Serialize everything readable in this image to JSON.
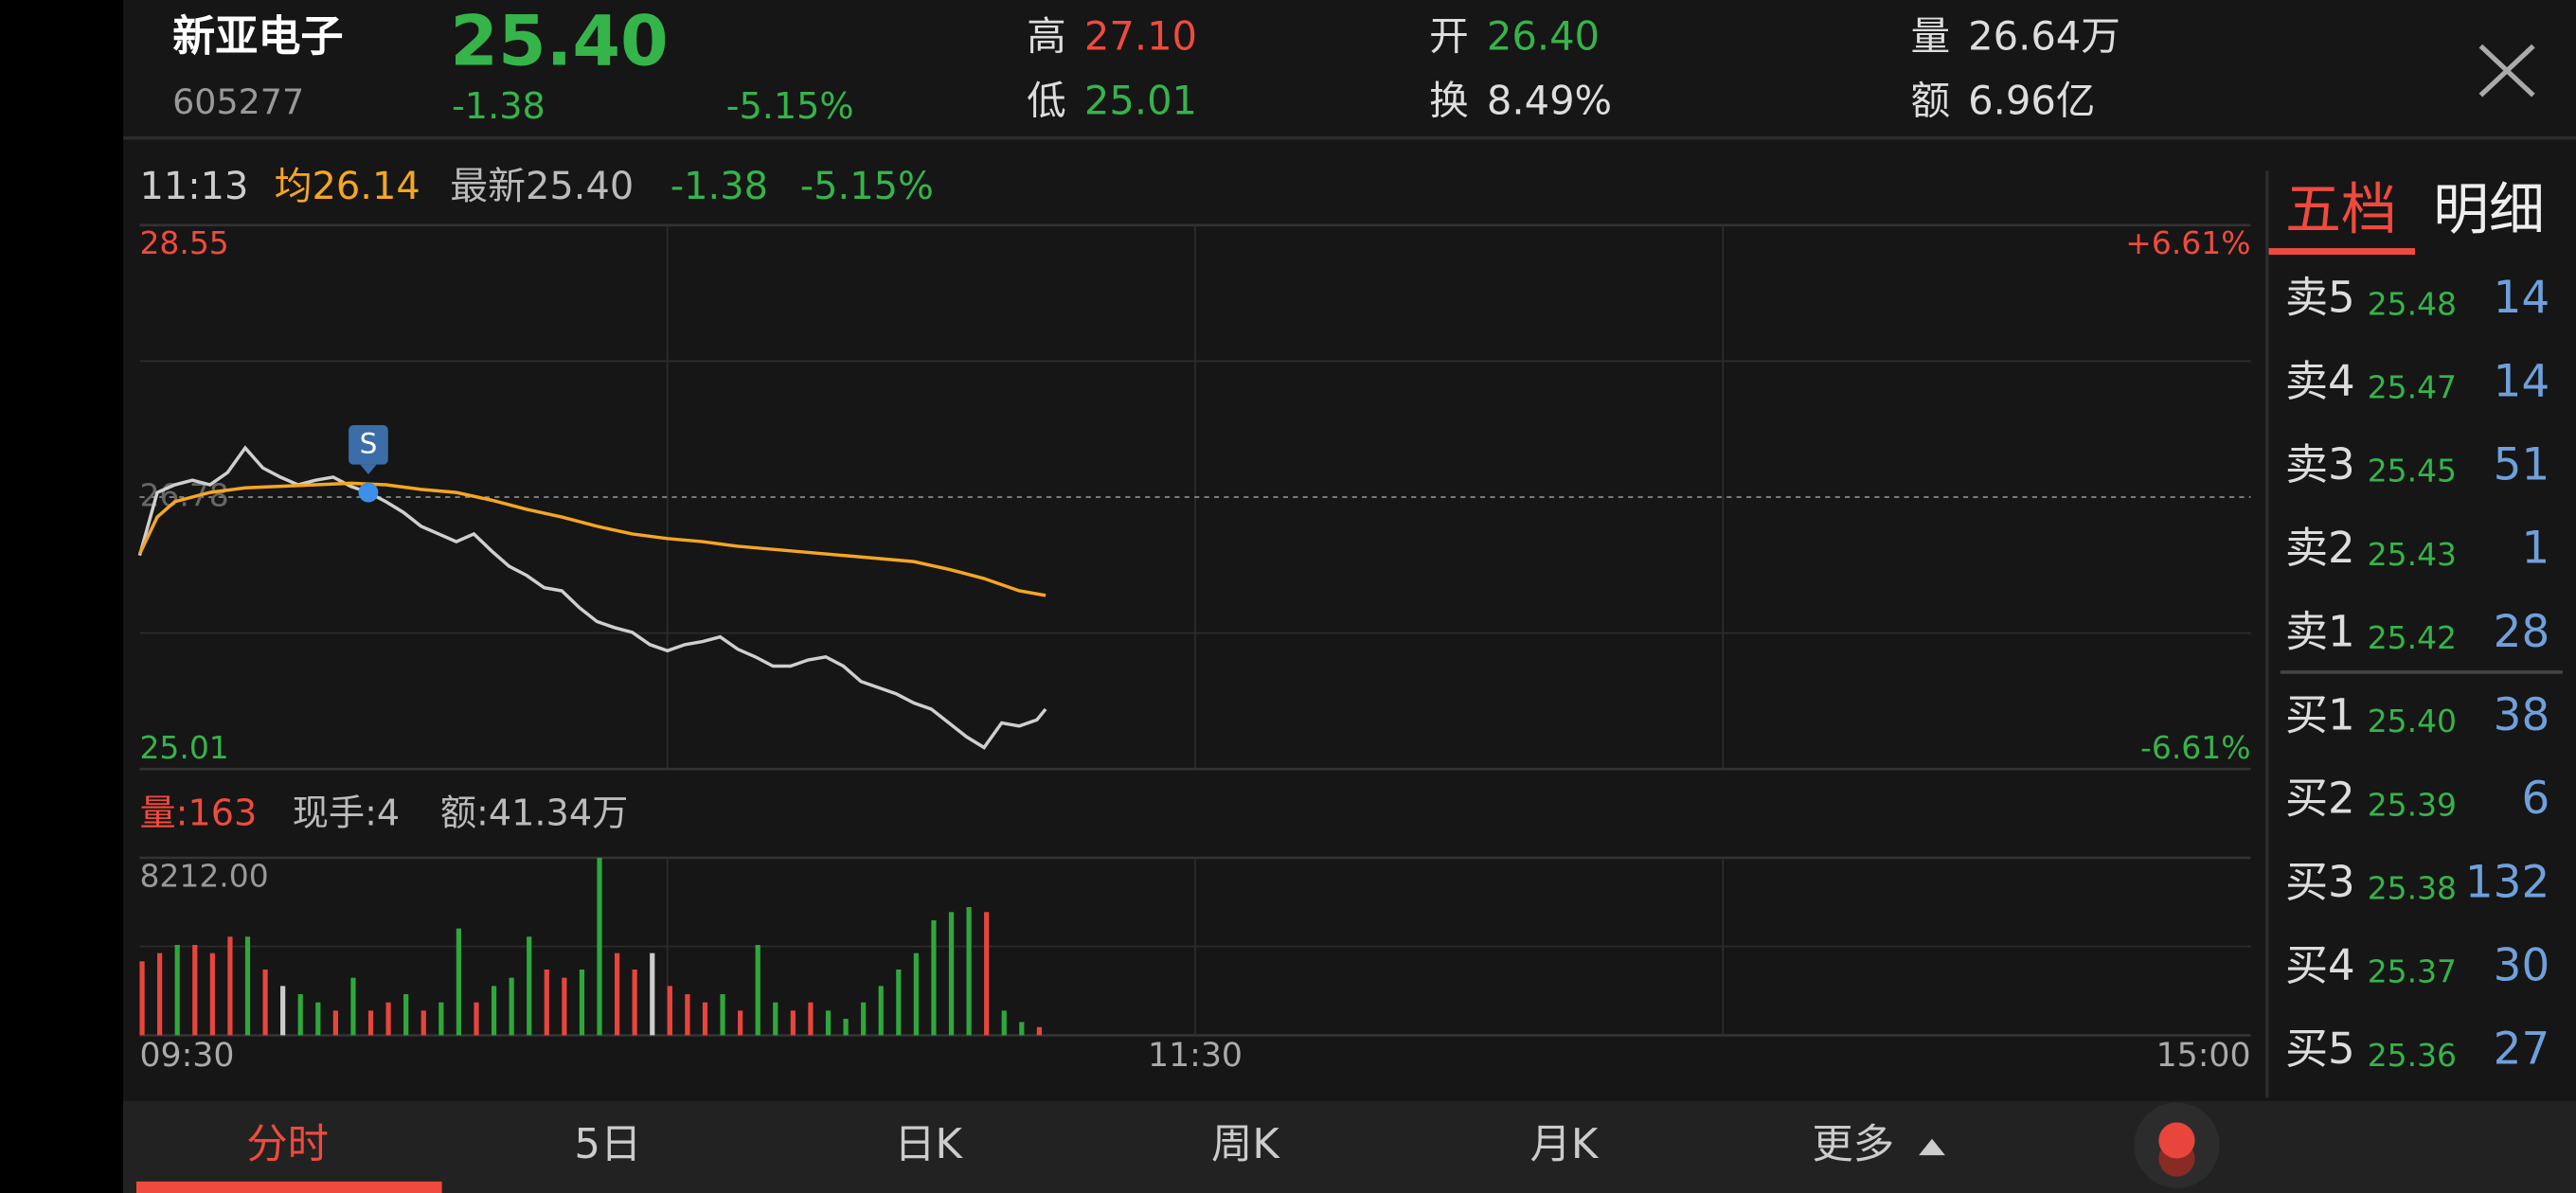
{
  "header": {
    "name": "新亚电子",
    "code": "605277",
    "price": "25.40",
    "change": "-1.38",
    "change_pct": "-5.15%",
    "high_label": "高",
    "high": "27.10",
    "low_label": "低",
    "low": "25.01",
    "open_label": "开",
    "open": "26.40",
    "turnover_label": "换",
    "turnover": "8.49%",
    "volume_label": "量",
    "volume": "26.64万",
    "amount_label": "额",
    "amount": "6.96亿"
  },
  "info_bar": {
    "time": "11:13",
    "avg": "均26.14",
    "latest": "最新25.40",
    "change": "-1.38",
    "change_pct": "-5.15%"
  },
  "order_book": {
    "tabs": [
      "五档",
      "明细"
    ],
    "rows": [
      {
        "label": "卖5",
        "price": "25.48",
        "volume": "14"
      },
      {
        "label": "卖4",
        "price": "25.47",
        "volume": "14"
      },
      {
        "label": "卖3",
        "price": "25.45",
        "volume": "51"
      },
      {
        "label": "卖2",
        "price": "25.43",
        "volume": "1"
      },
      {
        "label": "卖1",
        "price": "25.42",
        "volume": "28"
      },
      {
        "label": "买1",
        "price": "25.40",
        "volume": "38"
      },
      {
        "label": "买2",
        "price": "25.39",
        "volume": "6"
      },
      {
        "label": "买3",
        "price": "25.38",
        "volume": "132"
      },
      {
        "label": "买4",
        "price": "25.37",
        "volume": "30"
      },
      {
        "label": "买5",
        "price": "25.36",
        "volume": "27"
      }
    ]
  },
  "volume_info": [
    "量:163",
    "现手:4",
    "额:41.34万"
  ],
  "tabs": [
    "分时",
    "5日",
    "日K",
    "周K",
    "月K",
    "更多"
  ],
  "chart_data": [
    {
      "type": "line",
      "xlim": [
        0,
        240
      ],
      "grid_xticks": [
        60,
        120,
        180
      ],
      "ylim": [
        25.01,
        28.55
      ],
      "yticks": [
        28.55,
        26.78,
        25.01
      ],
      "grid_yticks": [
        27.665,
        25.895
      ],
      "y2lim": [
        -6.61,
        6.61
      ],
      "y2ticks": [
        {
          "value": 6.61,
          "label": "+6.61%"
        },
        {
          "value": -6.61,
          "label": "-6.61%"
        }
      ],
      "series": [
        {
          "color": "#cfcfcf",
          "x": [
            0,
            2,
            4,
            6,
            8,
            10,
            12,
            14,
            16,
            18,
            20,
            22,
            24,
            26,
            28,
            30,
            32,
            34,
            36,
            38,
            40,
            42,
            44,
            46,
            48,
            50,
            52,
            54,
            56,
            58,
            60,
            62,
            64,
            66,
            68,
            70,
            72,
            74,
            76,
            78,
            80,
            82,
            84,
            86,
            88,
            90,
            92,
            94,
            96,
            98,
            100,
            102,
            103
          ],
          "values": [
            26.4,
            26.81,
            26.86,
            26.89,
            26.86,
            26.94,
            27.1,
            26.97,
            26.91,
            26.86,
            26.89,
            26.91,
            26.85,
            26.81,
            26.75,
            26.68,
            26.59,
            26.54,
            26.49,
            26.54,
            26.43,
            26.33,
            26.27,
            26.19,
            26.17,
            26.06,
            25.97,
            25.93,
            25.9,
            25.82,
            25.78,
            25.82,
            25.84,
            25.87,
            25.79,
            25.74,
            25.68,
            25.68,
            25.72,
            25.74,
            25.68,
            25.58,
            25.54,
            25.5,
            25.44,
            25.4,
            25.31,
            25.22,
            25.15,
            25.31,
            25.29,
            25.33,
            25.4
          ]
        },
        {
          "color": "#f5a623",
          "x": [
            0,
            2,
            4,
            8,
            12,
            16,
            20,
            24,
            28,
            32,
            36,
            40,
            44,
            48,
            52,
            56,
            60,
            64,
            68,
            72,
            76,
            80,
            84,
            88,
            92,
            96,
            100,
            103
          ],
          "values": [
            26.41,
            26.65,
            26.75,
            26.81,
            26.84,
            26.85,
            26.86,
            26.87,
            26.86,
            26.83,
            26.81,
            26.76,
            26.7,
            26.65,
            26.59,
            26.54,
            26.51,
            26.49,
            26.46,
            26.44,
            26.42,
            26.4,
            26.38,
            26.36,
            26.31,
            26.25,
            26.17,
            26.14
          ]
        }
      ],
      "annotations": [
        {
          "x": 26,
          "y": 26.81,
          "label": "S"
        }
      ]
    },
    {
      "type": "bar",
      "xlim": [
        0,
        240
      ],
      "xticks": [
        {
          "value": 0,
          "label": "09:30"
        },
        {
          "value": 120,
          "label": "11:30"
        },
        {
          "value": 240,
          "label": "15:00"
        }
      ],
      "grid_xticks": [
        60,
        120,
        180
      ],
      "ylim": [
        0,
        8212
      ],
      "yticks": [
        {
          "value": 8212,
          "label": "8212.00"
        }
      ],
      "grid_yticks": [
        4106
      ],
      "x": [
        0,
        2,
        4,
        6,
        8,
        10,
        12,
        14,
        16,
        18,
        20,
        22,
        24,
        26,
        28,
        30,
        32,
        34,
        36,
        38,
        40,
        42,
        44,
        46,
        48,
        50,
        52,
        54,
        56,
        58,
        60,
        62,
        64,
        66,
        68,
        70,
        72,
        74,
        76,
        78,
        80,
        82,
        84,
        86,
        88,
        90,
        92,
        94,
        96,
        98,
        100,
        102
      ],
      "values": [
        3420,
        3800,
        4180,
        4180,
        3800,
        4560,
        4560,
        3040,
        2280,
        1900,
        1520,
        1140,
        2660,
        1140,
        1520,
        1900,
        1140,
        1520,
        4940,
        1520,
        2280,
        2660,
        4560,
        3040,
        2660,
        3040,
        8212,
        3800,
        3040,
        3800,
        2280,
        1900,
        1520,
        1900,
        1140,
        4180,
        1520,
        1140,
        1520,
        1140,
        760,
        1520,
        2280,
        3040,
        3800,
        5320,
        5700,
        5930,
        5700,
        1140,
        610,
        380
      ],
      "colors": [
        "#e8453c",
        "#e8453c",
        "#2fa83b",
        "#e8453c",
        "#e8453c",
        "#e8453c",
        "#2fa83b",
        "#e8453c",
        "#cccccc",
        "#2fa83b",
        "#2fa83b",
        "#e8453c",
        "#2fa83b",
        "#e8453c",
        "#e8453c",
        "#2fa83b",
        "#e8453c",
        "#2fa83b",
        "#2fa83b",
        "#e8453c",
        "#2fa83b",
        "#2fa83b",
        "#2fa83b",
        "#e8453c",
        "#e8453c",
        "#2fa83b",
        "#2fa83b",
        "#e8453c",
        "#e8453c",
        "#cccccc",
        "#e8453c",
        "#e8453c",
        "#e8453c",
        "#2fa83b",
        "#e8453c",
        "#2fa83b",
        "#2fa83b",
        "#e8453c",
        "#e8453c",
        "#2fa83b",
        "#2fa83b",
        "#2fa83b",
        "#2fa83b",
        "#2fa83b",
        "#2fa83b",
        "#2fa83b",
        "#2fa83b",
        "#2fa83b",
        "#e8453c",
        "#2fa83b",
        "#2fa83b",
        "#e8453c"
      ]
    }
  ]
}
